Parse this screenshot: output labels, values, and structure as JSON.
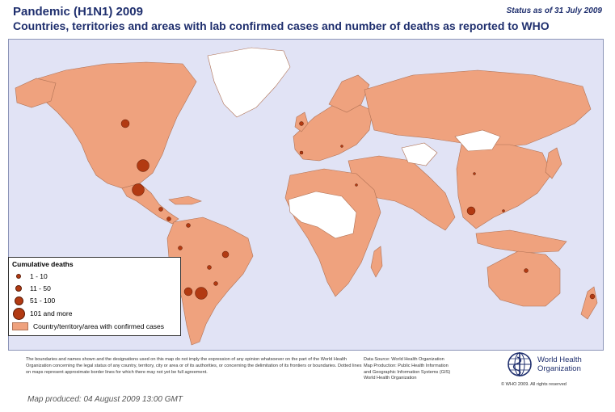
{
  "header": {
    "title": "Pandemic (H1N1) 2009",
    "subtitle": "Countries, territories and areas with lab confirmed cases and number of deaths as reported to WHO",
    "status": "Status as of 31 July 2009"
  },
  "colors": {
    "ocean": "#e1e3f5",
    "confirmed_area": "#efa27e",
    "no_cases_area": "#ffffff",
    "death_marker": "#b23a12",
    "title_text": "#1f2f6e"
  },
  "legend": {
    "title": "Cumulative deaths",
    "items": [
      {
        "label": "1 - 10",
        "size_class": "smallest"
      },
      {
        "label": "11 - 50",
        "size_class": "small"
      },
      {
        "label": "51 - 100",
        "size_class": "medium"
      },
      {
        "label": "101 and more",
        "size_class": "large"
      }
    ],
    "area_label": "Country/territory/area with confirmed cases"
  },
  "footer": {
    "disclaimer": "The boundaries and names shown and the designations used on this map do not imply the expression of any opinion whatsoever on the part of the World Health Organization concerning the legal status of any country, territory, city or area or of its authorities, or concerning the delimitation of its frontiers or boundaries. Dotted lines on maps represent approximate border lines for which there may not yet be full agreement.",
    "data_source": "Data Source: World Health Organization",
    "map_production": "Map Production: Public Health Information",
    "map_production_2": "and Geographic Information Systems (GIS)",
    "map_production_3": "World Health Organization",
    "produced": "Map produced: 04 August 2009 13:00 GMT",
    "org_line1": "World Health",
    "org_line2": "Organization",
    "copyright": "© WHO 2009. All rights reserved"
  }
}
